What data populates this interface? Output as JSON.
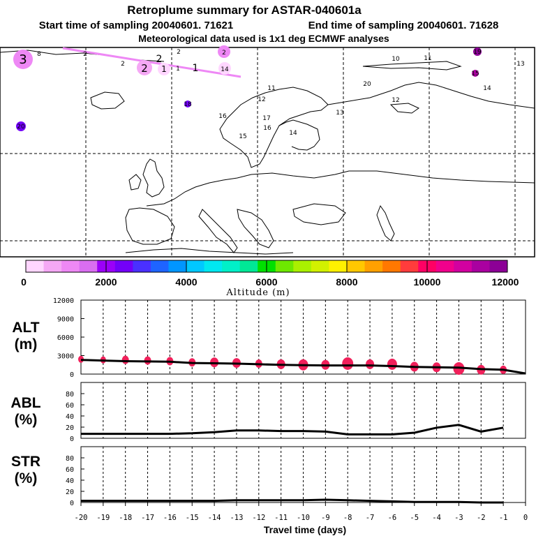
{
  "header": {
    "title": "Retroplume summary for ASTAR-040601a",
    "start_time": "Start time of sampling 20040601. 71621",
    "end_time": "End time of sampling 20040601. 71628",
    "meteo": "Meteorological data used is 1x1 deg ECMWF analyses"
  },
  "map": {
    "markers": [
      {
        "label": "3",
        "size": "big"
      },
      {
        "label": "8",
        "size": "small"
      },
      {
        "label": "2",
        "size": "small"
      },
      {
        "label": "2",
        "size": "mid"
      },
      {
        "label": "2",
        "size": "small"
      },
      {
        "label": "2",
        "size": "small"
      },
      {
        "label": "2",
        "size": "small"
      },
      {
        "label": "1",
        "size": "mid"
      },
      {
        "label": "1",
        "size": "small"
      },
      {
        "label": "1",
        "size": "small"
      },
      {
        "label": "14",
        "size": "mid"
      },
      {
        "label": "10",
        "size": "small"
      },
      {
        "label": "11",
        "size": "small"
      },
      {
        "label": "19",
        "size": "small"
      },
      {
        "label": "13",
        "size": "small"
      },
      {
        "label": "20",
        "size": "small"
      },
      {
        "label": "15",
        "size": "small"
      },
      {
        "label": "14",
        "size": "small"
      },
      {
        "label": "11",
        "size": "small"
      },
      {
        "label": "12",
        "size": "small"
      },
      {
        "label": "12",
        "size": "small"
      },
      {
        "label": "18",
        "size": "small"
      },
      {
        "label": "16",
        "size": "small"
      },
      {
        "label": "17",
        "size": "small"
      },
      {
        "label": "16",
        "size": "small"
      },
      {
        "label": "15",
        "size": "small"
      },
      {
        "label": "14",
        "size": "small"
      },
      {
        "label": "13",
        "size": "small"
      },
      {
        "label": "20",
        "size": "small"
      }
    ],
    "trajectory_color": "#ee88f5"
  },
  "colorbar": {
    "tick_labels": [
      "0",
      "2000",
      "4000",
      "6000",
      "8000",
      "10000",
      "12000"
    ],
    "title": "Altitude (m)",
    "colors": [
      "#ffd6ff",
      "#f5a8f5",
      "#ee88f5",
      "#d96ef0",
      "#9b00f8",
      "#7300f8",
      "#4a30ff",
      "#1e64ff",
      "#0096ff",
      "#00c8ff",
      "#00e8f0",
      "#00f0c8",
      "#00e896",
      "#00e000",
      "#6ee800",
      "#aaf000",
      "#d2f000",
      "#fff000",
      "#ffc800",
      "#ffa000",
      "#ff7800",
      "#ff3c3c",
      "#ff0064",
      "#f0008c",
      "#d200a0",
      "#aa00a0",
      "#8c0096"
    ]
  },
  "chart_data": [
    {
      "type": "line",
      "panel": "ALT",
      "ylabel": "ALT",
      "yunit": "(m)",
      "ylim": [
        0,
        12000
      ],
      "yticks": [
        "0",
        "3000",
        "6000",
        "9000",
        "12000"
      ],
      "x": [
        -20,
        -19,
        -18,
        -17,
        -16,
        -15,
        -14,
        -13,
        -12,
        -11,
        -10,
        -9,
        -8,
        -7,
        -6,
        -5,
        -4,
        -3,
        -2,
        -1,
        0
      ],
      "values": [
        2300,
        2200,
        2100,
        2050,
        2000,
        1800,
        1750,
        1700,
        1600,
        1500,
        1450,
        1400,
        1400,
        1400,
        1300,
        1150,
        1100,
        1050,
        800,
        700,
        100
      ],
      "markers": [
        {
          "x": -20,
          "y": 2400,
          "r": 4
        },
        {
          "x": -19,
          "y": 2300,
          "r": 4
        },
        {
          "x": -18,
          "y": 2300,
          "r": 5
        },
        {
          "x": -17,
          "y": 2200,
          "r": 5
        },
        {
          "x": -16,
          "y": 2100,
          "r": 5
        },
        {
          "x": -15,
          "y": 1900,
          "r": 5
        },
        {
          "x": -14,
          "y": 1900,
          "r": 6
        },
        {
          "x": -13,
          "y": 1800,
          "r": 6
        },
        {
          "x": -12,
          "y": 1700,
          "r": 5
        },
        {
          "x": -11,
          "y": 1600,
          "r": 6
        },
        {
          "x": -10,
          "y": 1500,
          "r": 7
        },
        {
          "x": -9,
          "y": 1500,
          "r": 6
        },
        {
          "x": -8,
          "y": 1700,
          "r": 8
        },
        {
          "x": -7,
          "y": 1600,
          "r": 6
        },
        {
          "x": -6,
          "y": 1600,
          "r": 7
        },
        {
          "x": -5,
          "y": 1200,
          "r": 6
        },
        {
          "x": -4,
          "y": 1100,
          "r": 6
        },
        {
          "x": -3,
          "y": 900,
          "r": 8
        },
        {
          "x": -2,
          "y": 700,
          "r": 6
        },
        {
          "x": -1,
          "y": 700,
          "r": 5
        }
      ],
      "marker_color": "#f0205a"
    },
    {
      "type": "line",
      "panel": "ABL",
      "ylabel": "ABL",
      "yunit": "(%)",
      "ylim": [
        0,
        100
      ],
      "yticks": [
        "0",
        "20",
        "40",
        "60",
        "80"
      ],
      "x": [
        -20,
        -19,
        -18,
        -17,
        -16,
        -15,
        -14,
        -13,
        -12,
        -11,
        -10,
        -9,
        -8,
        -7,
        -6,
        -5,
        -4,
        -3,
        -2,
        -1
      ],
      "values": [
        8,
        8,
        8,
        8,
        8,
        9,
        11,
        14,
        14,
        13,
        13,
        12,
        7,
        7,
        7,
        10,
        19,
        24,
        12,
        19
      ]
    },
    {
      "type": "line",
      "panel": "STR",
      "ylabel": "STR",
      "yunit": "(%)",
      "ylim": [
        0,
        100
      ],
      "yticks": [
        "0",
        "20",
        "40",
        "60",
        "80"
      ],
      "x": [
        -20,
        -19,
        -18,
        -17,
        -16,
        -15,
        -14,
        -13,
        -12,
        -11,
        -10,
        -9,
        -8,
        -7,
        -6,
        -5,
        -4,
        -3,
        -2,
        -1
      ],
      "values": [
        3,
        3,
        3,
        3,
        3,
        3,
        3,
        4,
        4,
        4,
        4,
        5,
        4,
        3,
        2,
        1,
        1,
        1,
        0,
        0
      ]
    }
  ],
  "xaxis": {
    "tick_labels": [
      "-20",
      "-19",
      "-18",
      "-17",
      "-16",
      "-15",
      "-14",
      "-13",
      "-12",
      "-11",
      "-10",
      "-9",
      "-8",
      "-7",
      "-6",
      "-5",
      "-4",
      "-3",
      "-2",
      "-1",
      "0"
    ],
    "label": "Travel time (days)"
  }
}
